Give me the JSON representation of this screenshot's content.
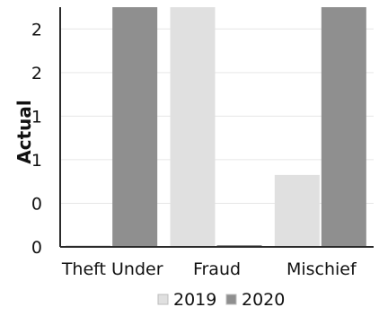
{
  "chart_data": {
    "type": "bar",
    "title": "",
    "xlabel": "",
    "ylabel": "Actual",
    "categories": [
      "Theft Under",
      "Fraud",
      "Mischief"
    ],
    "series": [
      {
        "name": "2019",
        "values": [
          0,
          2,
          0.6
        ],
        "color": "#e0e0e0"
      },
      {
        "name": "2020",
        "values": [
          2,
          0,
          2
        ],
        "color": "#8f8f8f"
      }
    ],
    "ylim": [
      0,
      2
    ],
    "y_tick_labels": [
      "0",
      "0",
      "1",
      "1",
      "2",
      "2"
    ],
    "grid": true,
    "legend": "bottom"
  }
}
